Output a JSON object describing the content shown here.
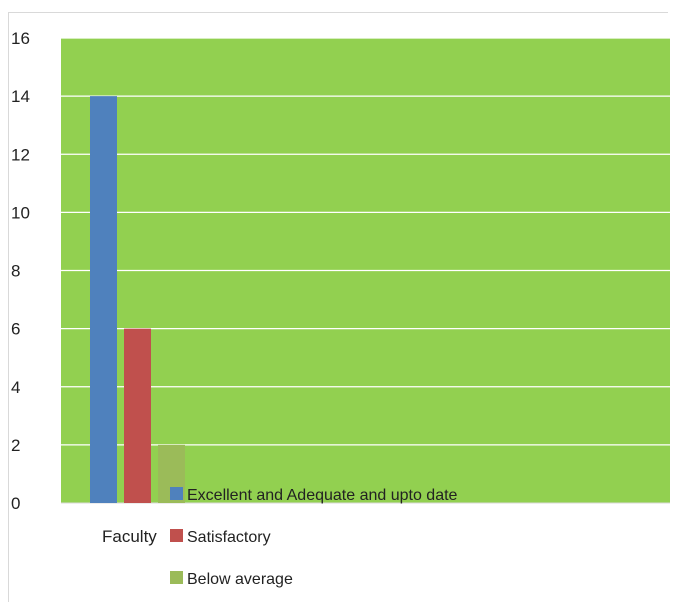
{
  "chart_data": {
    "type": "bar",
    "categories": [
      "Faculty"
    ],
    "series": [
      {
        "name": "Excellent and Adequate and upto date",
        "values": [
          14
        ],
        "color": "#4f81bd"
      },
      {
        "name": "Satisfactory",
        "values": [
          6
        ],
        "color": "#c0504d"
      },
      {
        "name": "Below average",
        "values": [
          2
        ],
        "color": "#9bbb59"
      }
    ],
    "title": "",
    "xlabel": "",
    "ylabel": "",
    "ylim": [
      0,
      16
    ],
    "yticks": [
      0,
      2,
      4,
      6,
      8,
      10,
      12,
      14,
      16
    ],
    "plot_background": "#92d050",
    "gridline_color": "#ffffff",
    "grid": true,
    "legend_position": "bottom"
  }
}
